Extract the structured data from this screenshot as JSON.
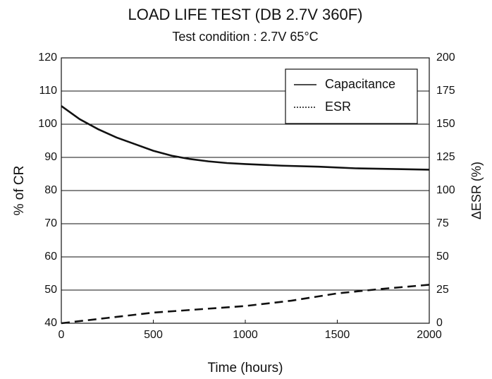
{
  "chart_data": {
    "type": "line",
    "title": "LOAD LIFE TEST (DB 2.7V 360F)",
    "subtitle": "Test condition : 2.7V 65°C",
    "xlabel": "Time (hours)",
    "ylabel": "% of CR",
    "y2label": "ΔESR (%)",
    "xlim": [
      0,
      2000
    ],
    "xticks": [
      0,
      500,
      1000,
      1500,
      2000
    ],
    "ylim": [
      40,
      120
    ],
    "yticks": [
      40,
      50,
      60,
      70,
      80,
      90,
      100,
      110,
      120
    ],
    "y2lim": [
      0,
      200
    ],
    "y2ticks": [
      0,
      25,
      50,
      75,
      100,
      125,
      150,
      175,
      200
    ],
    "grid": true,
    "legend": "upper right",
    "series": [
      {
        "name": "Capacitance",
        "color": "#111111",
        "line_style": "solid",
        "x": [
          0,
          100,
          200,
          300,
          400,
          500,
          600,
          700,
          800,
          900,
          1000,
          1200,
          1400,
          1600,
          1800,
          2000
        ],
        "values": [
          105.5,
          101.5,
          98.5,
          96,
          94,
          92,
          90.5,
          89.5,
          88.8,
          88.3,
          88,
          87.5,
          87.2,
          86.7,
          86.5,
          86.3
        ]
      },
      {
        "name": "ESR",
        "color": "#111111",
        "line_style": "dashed",
        "axis": "y2",
        "x": [
          0,
          250,
          500,
          750,
          1000,
          1250,
          1500,
          1750,
          2000
        ],
        "values": [
          0,
          4,
          8,
          10.5,
          13,
          17,
          22.5,
          26,
          29
        ]
      }
    ]
  }
}
